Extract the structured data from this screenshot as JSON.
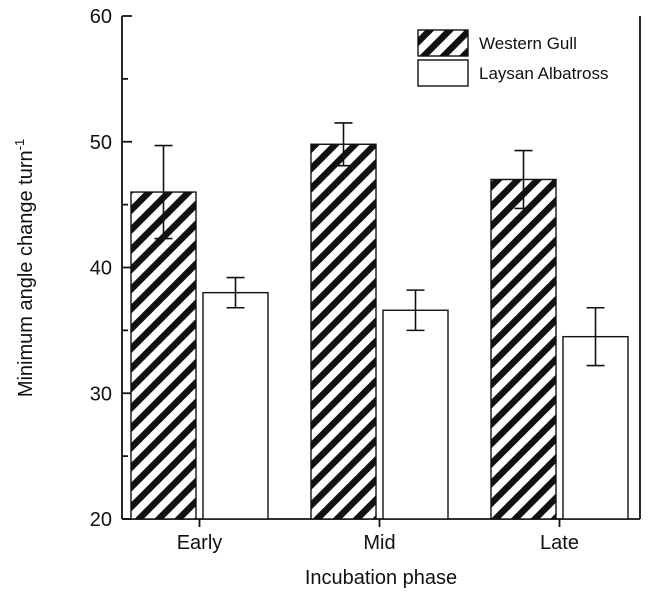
{
  "chart_data": {
    "type": "bar",
    "categories": [
      "Early",
      "Mid",
      "Late"
    ],
    "series": [
      {
        "name": "Western Gull",
        "values": [
          46.0,
          49.8,
          47.0
        ],
        "errors": [
          3.7,
          1.7,
          2.3
        ],
        "fill": "hatched"
      },
      {
        "name": "Laysan Albatross",
        "values": [
          38.0,
          36.6,
          34.5
        ],
        "errors": [
          1.2,
          1.6,
          2.3
        ],
        "fill": "white"
      }
    ],
    "xlabel": "Incubation phase",
    "ylabel": "Minimum angle change turn",
    "ylabel_sup": "-1",
    "ylim": [
      20,
      60
    ],
    "yticks": [
      20,
      30,
      40,
      50,
      60
    ],
    "grid": false,
    "legend_position": "top-right",
    "colors": {
      "axis": "#111111",
      "bar_stroke": "#111111",
      "hatch": "#111111",
      "bar_white": "#ffffff"
    }
  }
}
